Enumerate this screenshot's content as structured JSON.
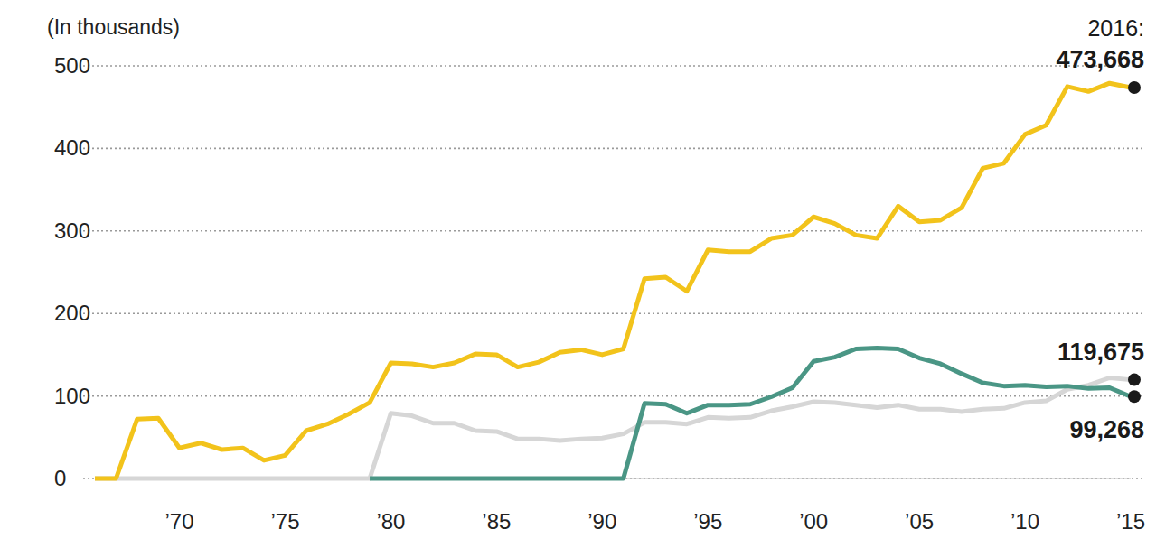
{
  "chart_data": {
    "type": "line",
    "y_label": "(In thousands)",
    "x": [
      1966,
      1967,
      1968,
      1969,
      1970,
      1971,
      1972,
      1973,
      1974,
      1975,
      1976,
      1977,
      1978,
      1979,
      1980,
      1981,
      1982,
      1983,
      1984,
      1985,
      1986,
      1987,
      1988,
      1989,
      1990,
      1991,
      1992,
      1993,
      1994,
      1995,
      1996,
      1997,
      1998,
      1999,
      2000,
      2001,
      2002,
      2003,
      2004,
      2005,
      2006,
      2007,
      2008,
      2009,
      2010,
      2011,
      2012,
      2013,
      2014,
      2015
    ],
    "series": [
      {
        "color": "#d6d6d6",
        "values": [
          0,
          0,
          0,
          0,
          0,
          0,
          0,
          0,
          0,
          0,
          0,
          0,
          0,
          0,
          79,
          76,
          67,
          67,
          58,
          57,
          48,
          48,
          46,
          48,
          49,
          54,
          68,
          68,
          66,
          74,
          73,
          74,
          82,
          87,
          93,
          92,
          89,
          86,
          89,
          84,
          84,
          81,
          84,
          85,
          92,
          94,
          108,
          113,
          122,
          119.675
        ]
      },
      {
        "color": "#4a9685",
        "values": [
          null,
          null,
          null,
          null,
          null,
          null,
          null,
          null,
          null,
          null,
          null,
          null,
          null,
          0,
          0,
          0,
          0,
          0,
          0,
          0,
          0,
          0,
          0,
          0,
          0,
          0,
          91,
          90,
          79,
          89,
          89,
          90,
          99,
          110,
          142,
          147,
          157,
          158,
          157,
          146,
          139,
          127,
          116,
          112,
          113,
          111,
          112,
          109,
          110,
          99.268
        ]
      },
      {
        "color": "#f2c31b",
        "values": [
          0,
          0,
          72,
          73,
          37,
          43,
          35,
          37,
          22,
          28,
          58,
          66,
          78,
          92,
          140,
          139,
          135,
          140,
          151,
          150,
          135,
          141,
          153,
          156,
          150,
          157,
          242,
          244,
          227,
          277,
          275,
          275,
          291,
          295,
          317,
          309,
          295,
          291,
          330,
          311,
          313,
          328,
          376,
          382,
          417,
          428,
          475,
          469,
          479,
          473.668
        ]
      }
    ],
    "xlim": [
      1966,
      2015
    ],
    "xticks": [
      {
        "value": 1970,
        "label": "’70"
      },
      {
        "value": 1975,
        "label": "’75"
      },
      {
        "value": 1980,
        "label": "’80"
      },
      {
        "value": 1985,
        "label": "’85"
      },
      {
        "value": 1990,
        "label": "’90"
      },
      {
        "value": 1995,
        "label": "’95"
      },
      {
        "value": 2000,
        "label": "’00"
      },
      {
        "value": 2005,
        "label": "’05"
      },
      {
        "value": 2010,
        "label": "’10"
      },
      {
        "value": 2015,
        "label": "’15"
      }
    ],
    "ylim": [
      0,
      500
    ],
    "yticks": [
      0,
      100,
      200,
      300,
      400,
      500
    ],
    "grid": true,
    "annotations": [
      {
        "title": "2016:",
        "text": "473,668",
        "x": 2015,
        "y": 473.668
      },
      {
        "text": "119,675",
        "x": 2015,
        "y": 119.675
      },
      {
        "text": "99,268",
        "x": 2015,
        "y": 99.268
      }
    ]
  }
}
